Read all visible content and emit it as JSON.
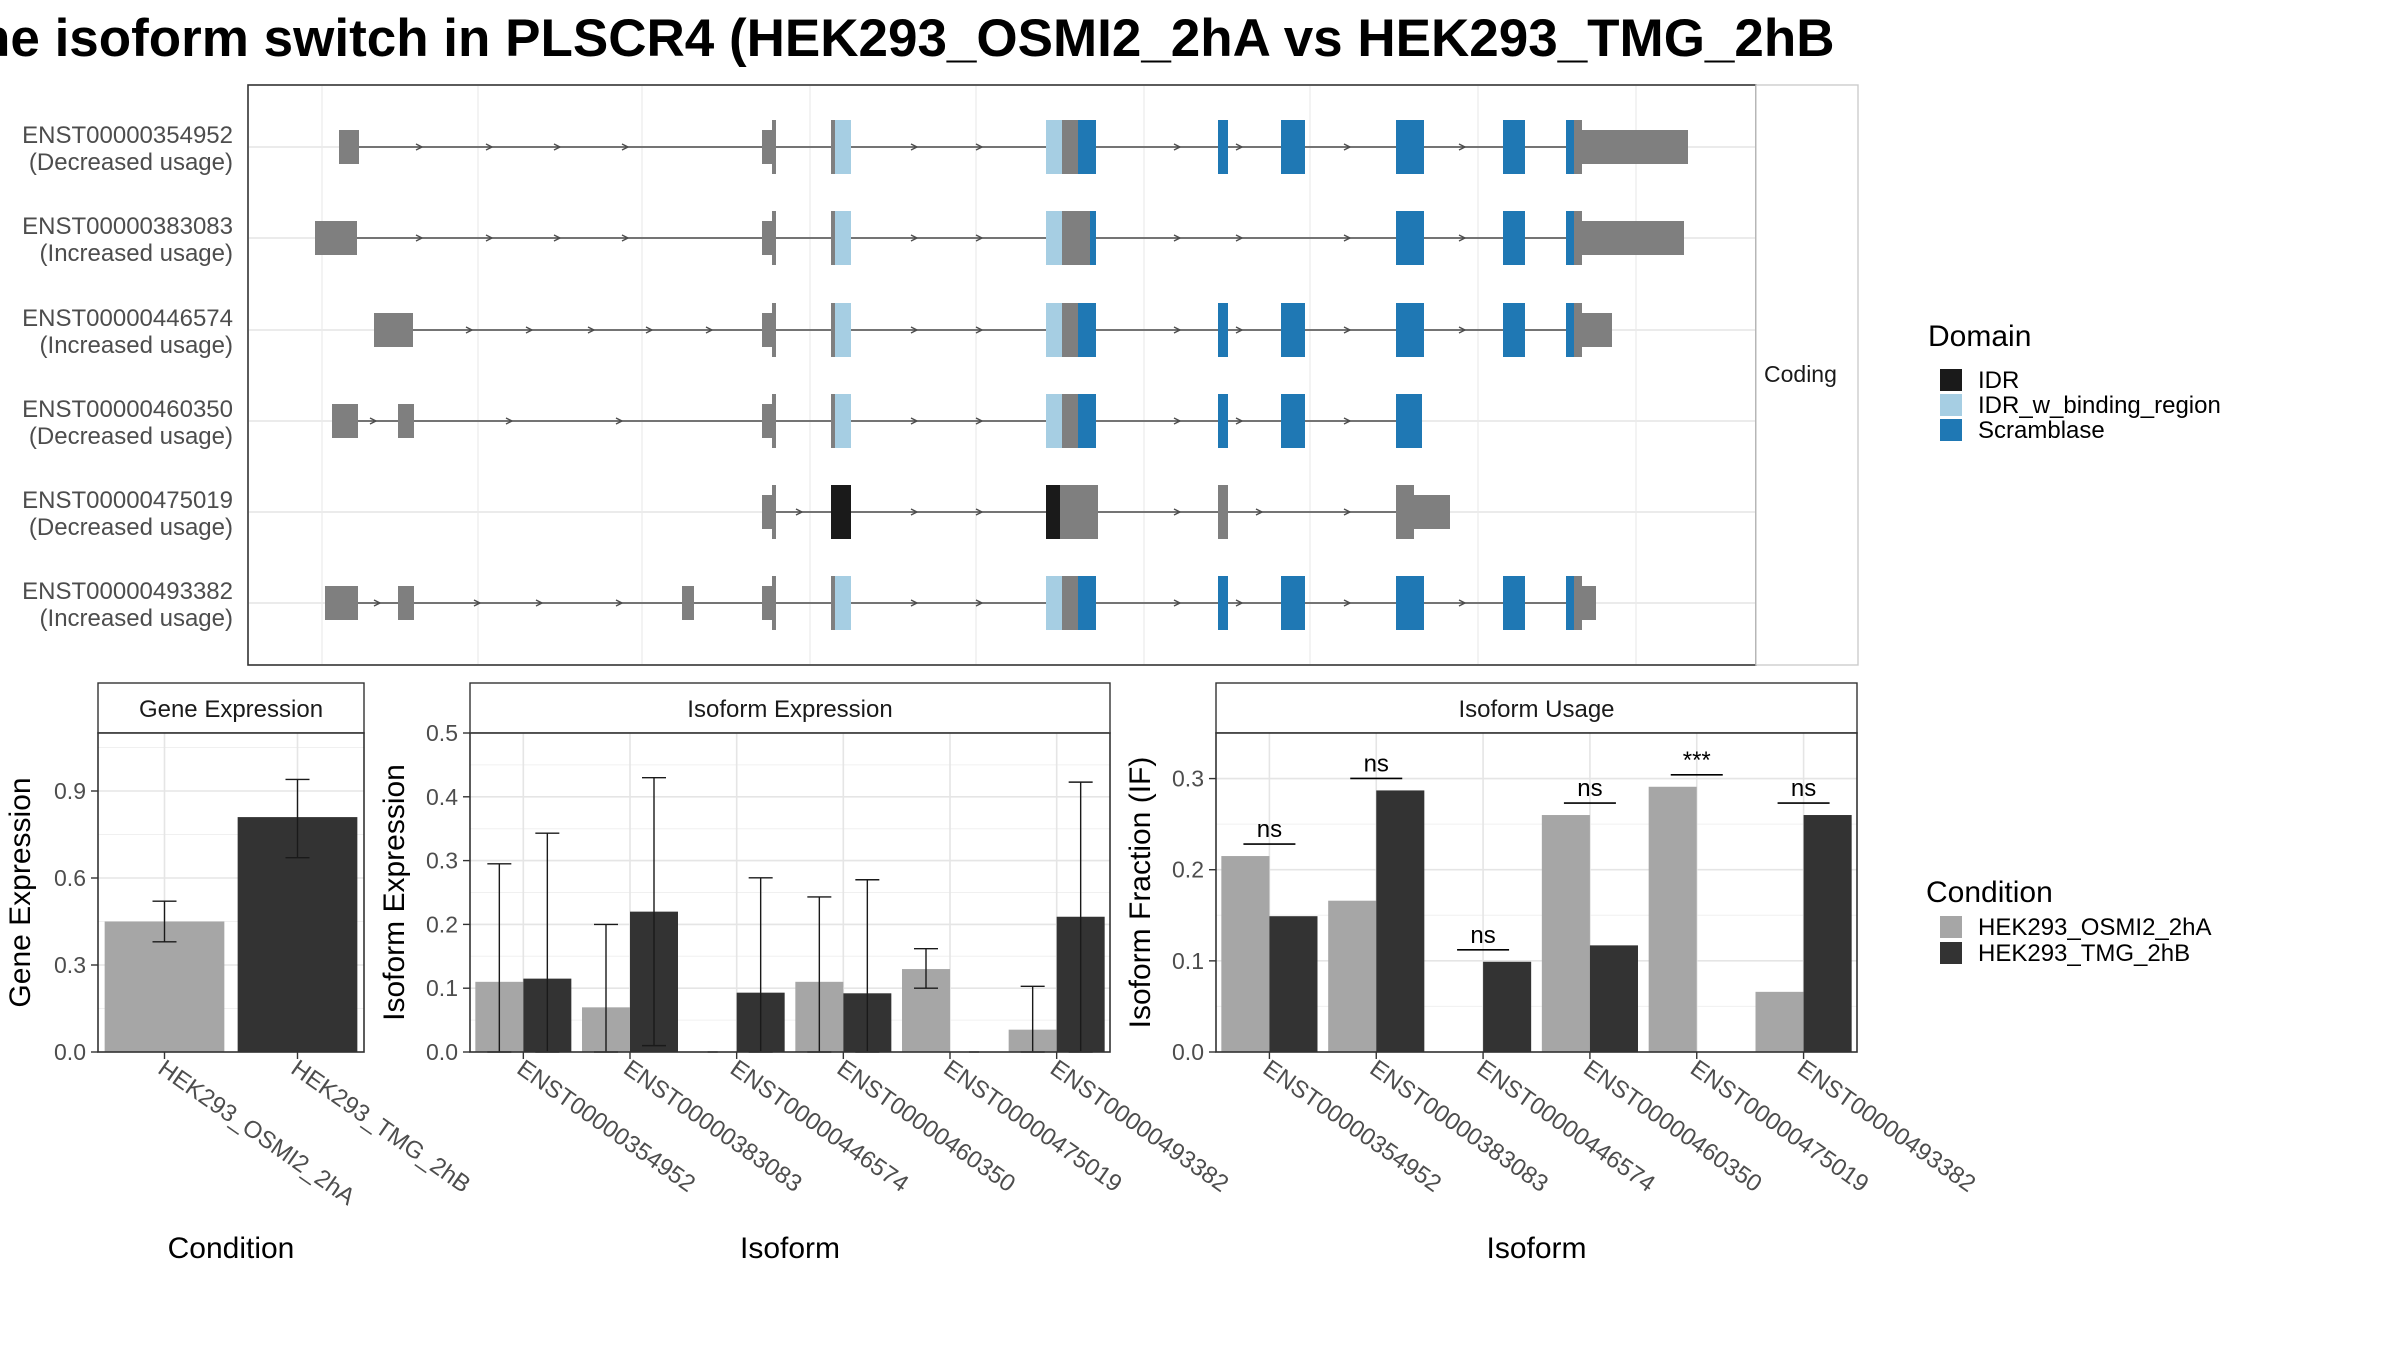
{
  "title": "he isoform switch in PLSCR4 (HEK293_OSMI2_2hA vs HEK293_TMG_2hB",
  "colors": {
    "exon_grey": "#7f7f7f",
    "IDR": "#1a1a1a",
    "IDR_w_binding_region": "#a6cee3",
    "Scramblase": "#1f78b4",
    "HEK293_OSMI2_2hA": "#a6a6a6",
    "HEK293_TMG_2hB": "#333333"
  },
  "transcript_panel": {
    "facet_label": "Coding",
    "transcripts": [
      {
        "id": "ENST00000354952",
        "usage": "(Decreased usage)"
      },
      {
        "id": "ENST00000383083",
        "usage": "(Increased usage)"
      },
      {
        "id": "ENST00000446574",
        "usage": "(Increased usage)"
      },
      {
        "id": "ENST00000460350",
        "usage": "(Decreased usage)"
      },
      {
        "id": "ENST00000475019",
        "usage": "(Decreased usage)"
      },
      {
        "id": "ENST00000493382",
        "usage": "(Increased usage)"
      }
    ]
  },
  "domain_legend": {
    "title": "Domain",
    "items": [
      "IDR",
      "IDR_w_binding_region",
      "Scramblase"
    ]
  },
  "condition_legend": {
    "title": "Condition",
    "items": [
      "HEK293_OSMI2_2hA",
      "HEK293_TMG_2hB"
    ]
  },
  "chart_data": [
    {
      "type": "bar",
      "title": "Gene Expression",
      "xlabel": "Condition",
      "ylabel": "Gene Expression",
      "categories": [
        "HEK293_OSMI2_2hA",
        "HEK293_TMG_2hB"
      ],
      "values": [
        0.45,
        0.81
      ],
      "error_low": [
        0.38,
        0.67
      ],
      "error_high": [
        0.52,
        0.94
      ],
      "ylim": [
        0,
        1.1
      ],
      "yticks": [
        "0.0",
        "0.3",
        "0.6",
        "0.9"
      ]
    },
    {
      "type": "bar",
      "title": "Isoform Expression",
      "xlabel": "Isoform",
      "ylabel": "Isoform Expression",
      "categories": [
        "ENST00000354952",
        "ENST00000383083",
        "ENST00000446574",
        "ENST00000460350",
        "ENST00000475019",
        "ENST00000493382"
      ],
      "series": [
        {
          "name": "HEK293_OSMI2_2hA",
          "values": [
            0.11,
            0.07,
            0.0,
            0.11,
            0.13,
            0.035
          ],
          "error_low": [
            0,
            0,
            0,
            0,
            0.1,
            0
          ],
          "error_high": [
            0.295,
            0.2,
            0,
            0.243,
            0.162,
            0.103
          ]
        },
        {
          "name": "HEK293_TMG_2hB",
          "values": [
            0.115,
            0.22,
            0.093,
            0.092,
            0.0,
            0.212
          ],
          "error_low": [
            0,
            0.01,
            0,
            0,
            0,
            0
          ],
          "error_high": [
            0.343,
            0.43,
            0.273,
            0.27,
            0,
            0.423
          ]
        }
      ],
      "ylim": [
        0,
        0.5
      ],
      "yticks": [
        "0.0",
        "0.1",
        "0.2",
        "0.3",
        "0.4",
        "0.5"
      ]
    },
    {
      "type": "bar",
      "title": "Isoform Usage",
      "xlabel": "Isoform",
      "ylabel": "Isoform Fraction (IF)",
      "categories": [
        "ENST00000354952",
        "ENST00000383083",
        "ENST00000446574",
        "ENST00000460350",
        "ENST00000475019",
        "ENST00000493382"
      ],
      "series": [
        {
          "name": "HEK293_OSMI2_2hA",
          "values": [
            0.215,
            0.166,
            0.0,
            0.26,
            0.291,
            0.066
          ]
        },
        {
          "name": "HEK293_TMG_2hB",
          "values": [
            0.149,
            0.287,
            0.099,
            0.117,
            0.0,
            0.26
          ]
        }
      ],
      "significance": [
        "ns",
        "ns",
        "ns",
        "ns",
        "***",
        "ns"
      ],
      "ylim": [
        0,
        0.35
      ],
      "yticks": [
        "0.0",
        "0.1",
        "0.2",
        "0.3"
      ]
    }
  ]
}
